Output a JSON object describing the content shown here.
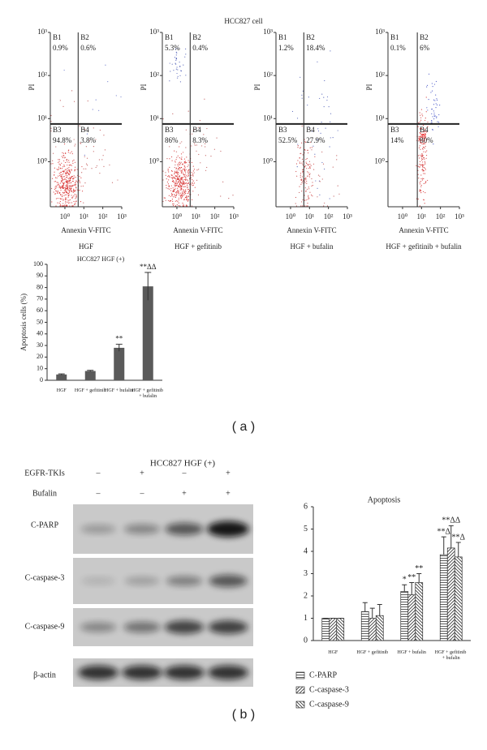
{
  "panel_labels": [
    "( a )",
    "( b )"
  ],
  "figure_title": "HCC827 cell",
  "chart_data": [
    {
      "type": "quadrant",
      "title": "HGF",
      "x_label": "Annexin V-FITC",
      "y_label": "PI",
      "log_scale": true,
      "xlim": [
        0.17,
        1000
      ],
      "ylim": [
        0.09,
        1000
      ],
      "xticks": [
        {
          "value": 1,
          "label": "10⁰"
        },
        {
          "value": 10,
          "label": "10¹"
        },
        {
          "value": 100,
          "label": "10²"
        },
        {
          "value": 1000,
          "label": "10³"
        }
      ],
      "yticks": [
        {
          "value": 1,
          "label": "10⁰"
        },
        {
          "value": 10,
          "label": "10¹"
        },
        {
          "value": 100,
          "label": "10²"
        },
        {
          "value": 1000,
          "label": "10³"
        }
      ],
      "gate": {
        "x": 5,
        "y": 7.5
      },
      "quadrants": [
        "B1",
        "B2",
        "B3",
        "B4"
      ],
      "values": [
        0.9,
        0.6,
        94.8,
        3.8
      ],
      "value_labels": [
        "0.9%",
        "0.6%",
        "94.8%",
        "3.8%"
      ]
    },
    {
      "type": "quadrant",
      "title": "HGF + gefitinib",
      "x_label": "Annexin V-FITC",
      "y_label": "PI",
      "log_scale": true,
      "xlim": [
        0.17,
        1000
      ],
      "ylim": [
        0.09,
        1000
      ],
      "xticks": [
        {
          "value": 1,
          "label": "10⁰"
        },
        {
          "value": 10,
          "label": "10¹"
        },
        {
          "value": 100,
          "label": "10²"
        },
        {
          "value": 1000,
          "label": "10³"
        }
      ],
      "yticks": [
        {
          "value": 1,
          "label": "10⁰"
        },
        {
          "value": 10,
          "label": "10¹"
        },
        {
          "value": 100,
          "label": "10²"
        },
        {
          "value": 1000,
          "label": "10³"
        }
      ],
      "gate": {
        "x": 5,
        "y": 7.5
      },
      "quadrants": [
        "B1",
        "B2",
        "B3",
        "B4"
      ],
      "values": [
        5.3,
        0.4,
        86,
        8.3
      ],
      "value_labels": [
        "5.3%",
        "0.4%",
        "86%",
        "8.3%"
      ]
    },
    {
      "type": "quadrant",
      "title": "HGF + bufalin",
      "x_label": "Annexin V-FITC",
      "y_label": "PI",
      "log_scale": true,
      "xlim": [
        0.17,
        1000
      ],
      "ylim": [
        0.09,
        1000
      ],
      "xticks": [
        {
          "value": 1,
          "label": "10⁰"
        },
        {
          "value": 10,
          "label": "10¹"
        },
        {
          "value": 100,
          "label": "10²"
        },
        {
          "value": 1000,
          "label": "10³"
        }
      ],
      "yticks": [
        {
          "value": 1,
          "label": "10⁰"
        },
        {
          "value": 10,
          "label": "10¹"
        },
        {
          "value": 100,
          "label": "10²"
        },
        {
          "value": 1000,
          "label": "10³"
        }
      ],
      "gate": {
        "x": 5,
        "y": 7.5
      },
      "quadrants": [
        "B1",
        "B2",
        "B3",
        "B4"
      ],
      "values": [
        1.2,
        18.4,
        52.5,
        27.9
      ],
      "value_labels": [
        "1.2%",
        "18.4%",
        "52.5%",
        "27.9%"
      ]
    },
    {
      "type": "quadrant",
      "title": "HGF + gefitinib + bufalin",
      "x_label": "Annexin V-FITC",
      "y_label": "PI",
      "log_scale": true,
      "xlim": [
        0.17,
        1000
      ],
      "ylim": [
        0.09,
        1000
      ],
      "xticks": [
        {
          "value": 1,
          "label": "10⁰"
        },
        {
          "value": 10,
          "label": "10¹"
        },
        {
          "value": 100,
          "label": "10²"
        },
        {
          "value": 1000,
          "label": "10³"
        }
      ],
      "yticks": [
        {
          "value": 1,
          "label": "10⁰"
        },
        {
          "value": 10,
          "label": "10¹"
        },
        {
          "value": 100,
          "label": "10²"
        },
        {
          "value": 1000,
          "label": "10³"
        }
      ],
      "gate": {
        "x": 6,
        "y": 7.5
      },
      "quadrants": [
        "B1",
        "B2",
        "B3",
        "B4"
      ],
      "values": [
        0.1,
        6,
        14,
        80
      ],
      "value_labels": [
        "0.1%",
        "6%",
        "14%",
        "80%"
      ]
    },
    {
      "type": "bar",
      "title": "HCC827 HGF (+)",
      "y_label": "Apoptosis cells (%)",
      "categories": [
        "HGF",
        "HGF + gefitinib",
        "HGF + bufalin",
        "HGF + gefitinib + bufalin"
      ],
      "values": [
        5,
        8,
        28,
        81
      ],
      "errors": [
        0.5,
        0.6,
        3,
        12
      ],
      "annotations": [
        null,
        null,
        "**",
        "**ΔΔ"
      ],
      "color": "#5a5a5a",
      "ylim": [
        0,
        100
      ],
      "yticks": [
        0,
        10,
        20,
        30,
        40,
        50,
        60,
        70,
        80,
        90,
        100
      ]
    },
    {
      "type": "grouped_bar",
      "title": "Apoptosis",
      "categories": [
        "HGF",
        "HGF + gefitinib",
        "HGF + bufalin",
        "HGF + gefitinib + bufalin"
      ],
      "series": [
        {
          "name": "C-PARP",
          "color": "#333333",
          "hatch": "horizontal",
          "values": [
            1,
            1.3,
            2.2,
            3.85
          ],
          "errors": [
            0,
            0.4,
            0.3,
            0.8
          ],
          "annotations": [
            null,
            null,
            "*",
            "**Δ"
          ]
        },
        {
          "name": "C-caspase-3",
          "color": "#333333",
          "hatch": "diagonal",
          "values": [
            1,
            1.0,
            2.05,
            4.15
          ],
          "errors": [
            0,
            0.45,
            0.55,
            1.0
          ],
          "annotations": [
            null,
            null,
            "**",
            "**ΔΔ"
          ]
        },
        {
          "name": "C-caspase-9",
          "color": "#333333",
          "hatch": "backdiagonal",
          "values": [
            1,
            1.12,
            2.6,
            3.75
          ],
          "errors": [
            0,
            0.5,
            0.4,
            0.65
          ],
          "annotations": [
            null,
            null,
            "**",
            "**Δ"
          ]
        }
      ],
      "ylim": [
        0,
        6
      ],
      "yticks": [
        0,
        1,
        2,
        3,
        4,
        5,
        6
      ],
      "legend": "bottom-left"
    }
  ],
  "blot": {
    "title": "HCC827 HGF (+)",
    "treatments": [
      {
        "name": "EGFR-TKIs",
        "signs": [
          "–",
          "+",
          "–",
          "+"
        ]
      },
      {
        "name": "Bufalin",
        "signs": [
          "–",
          "–",
          "+",
          "+"
        ]
      }
    ],
    "bands": [
      "C-PARP",
      "C-caspase-3",
      "C-caspase-9",
      "β-actin"
    ]
  }
}
